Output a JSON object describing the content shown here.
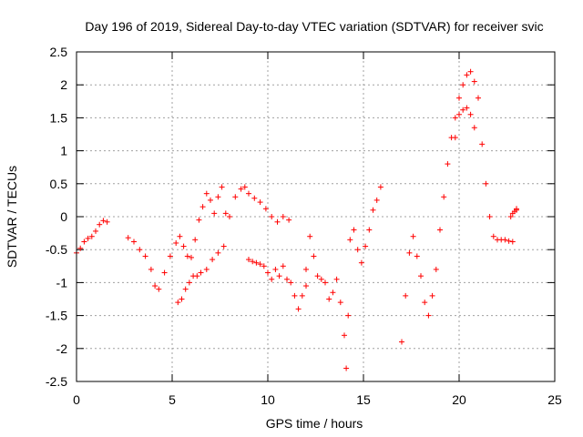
{
  "chart_data": {
    "type": "scatter",
    "title": "Day 196 of 2019, Sidereal Day-to-day VTEC variation (SDTVAR) for receiver svic",
    "xlabel": "GPS time / hours",
    "ylabel": "SDTVAR / TECUs",
    "xlim": [
      0,
      25
    ],
    "ylim": [
      -2.5,
      2.5
    ],
    "xticks": [
      0,
      5,
      10,
      15,
      20,
      25
    ],
    "yticks": [
      -2.5,
      -2,
      -1.5,
      -1,
      -0.5,
      0,
      0.5,
      1,
      1.5,
      2,
      2.5
    ],
    "grid": true,
    "marker": "+",
    "color": "#ff0000",
    "series": [
      {
        "name": "SDTVAR",
        "segments": [
          {
            "x": [
              0,
              0.2,
              0.4,
              0.6,
              0.8,
              1.0,
              1.2,
              1.4,
              1.6
            ],
            "y": [
              -0.55,
              -0.48,
              -0.38,
              -0.33,
              -0.3,
              -0.22,
              -0.12,
              -0.06,
              -0.08
            ]
          },
          {
            "x": [
              2.7,
              3.0,
              3.3,
              3.6,
              3.9,
              4.1,
              4.3,
              4.6,
              4.9,
              5.2,
              5.4,
              5.6,
              5.8,
              6.0
            ],
            "y": [
              -0.32,
              -0.38,
              -0.5,
              -0.6,
              -0.8,
              -1.05,
              -1.1,
              -0.85,
              -0.6,
              -0.4,
              -0.3,
              -0.45,
              -0.6,
              -0.62
            ]
          },
          {
            "x": [
              5.3,
              5.5,
              5.7,
              5.9,
              6.1,
              6.3,
              6.5,
              6.8,
              7.1,
              7.4,
              7.7
            ],
            "y": [
              -1.3,
              -1.25,
              -1.1,
              -1.0,
              -0.9,
              -0.9,
              -0.85,
              -0.8,
              -0.65,
              -0.55,
              -0.45
            ]
          },
          {
            "x": [
              6.2,
              6.4,
              6.6,
              6.8,
              7.0,
              7.2,
              7.4,
              7.6,
              7.8,
              8.0,
              8.3,
              8.6,
              8.8,
              9.0,
              9.3,
              9.6,
              9.9,
              10.2,
              10.5,
              10.8,
              11.1
            ],
            "y": [
              -0.35,
              -0.05,
              0.15,
              0.35,
              0.25,
              0.05,
              0.3,
              0.45,
              0.05,
              0.0,
              0.3,
              0.42,
              0.45,
              0.35,
              0.28,
              0.22,
              0.12,
              0.0,
              -0.08,
              0.0,
              -0.05
            ]
          },
          {
            "x": [
              9.0,
              9.2,
              9.4,
              9.6,
              9.8,
              10.0,
              10.2,
              10.4,
              10.6,
              10.8,
              11.0,
              11.2,
              11.4,
              11.6,
              11.8,
              12.0
            ],
            "y": [
              -0.65,
              -0.68,
              -0.7,
              -0.72,
              -0.75,
              -0.85,
              -0.95,
              -0.8,
              -0.9,
              -0.75,
              -0.95,
              -1.0,
              -1.2,
              -1.4,
              -1.2,
              -1.05
            ]
          },
          {
            "x": [
              12.0,
              12.2,
              12.4,
              12.6,
              12.8,
              13.0,
              13.2,
              13.4,
              13.6,
              13.8,
              14.0,
              14.1,
              14.2
            ],
            "y": [
              -0.8,
              -0.3,
              -0.6,
              -0.9,
              -0.95,
              -1.0,
              -1.25,
              -1.15,
              -0.95,
              -1.3,
              -1.8,
              -2.3,
              -1.5
            ]
          },
          {
            "x": [
              14.3,
              14.5,
              14.7,
              14.9,
              15.1,
              15.3,
              15.5,
              15.7,
              15.9
            ],
            "y": [
              -0.35,
              -0.2,
              -0.5,
              -0.7,
              -0.45,
              -0.2,
              0.1,
              0.25,
              0.45
            ]
          },
          {
            "x": [
              17.0,
              17.2,
              17.4,
              17.6,
              17.8,
              18.0,
              18.2,
              18.4,
              18.6,
              18.8,
              19.0,
              19.2,
              19.4,
              19.6,
              19.8,
              20.0,
              20.2,
              20.4,
              20.6,
              20.8,
              21.0,
              21.2,
              21.4,
              21.6,
              21.8,
              22.0,
              22.2,
              22.4,
              22.6,
              22.8,
              23.0
            ],
            "y": [
              -1.9,
              -1.2,
              -0.55,
              -0.3,
              -0.6,
              -0.9,
              -1.3,
              -1.5,
              -1.2,
              -0.8,
              -0.2,
              0.3,
              0.8,
              1.2,
              1.5,
              1.8,
              2.0,
              2.15,
              2.2,
              2.05,
              1.8,
              1.1,
              0.5,
              0.0,
              -0.3,
              -0.35,
              -0.35,
              -0.35,
              -0.37,
              -0.38,
              0.1
            ]
          },
          {
            "x": [
              19.8,
              20.0,
              20.2,
              20.4,
              20.6,
              20.8
            ],
            "y": [
              1.2,
              1.55,
              1.62,
              1.65,
              1.55,
              1.35
            ]
          },
          {
            "x": [
              22.7,
              22.8,
              22.9,
              23.0
            ],
            "y": [
              0.0,
              0.05,
              0.08,
              0.12
            ]
          }
        ]
      }
    ]
  }
}
